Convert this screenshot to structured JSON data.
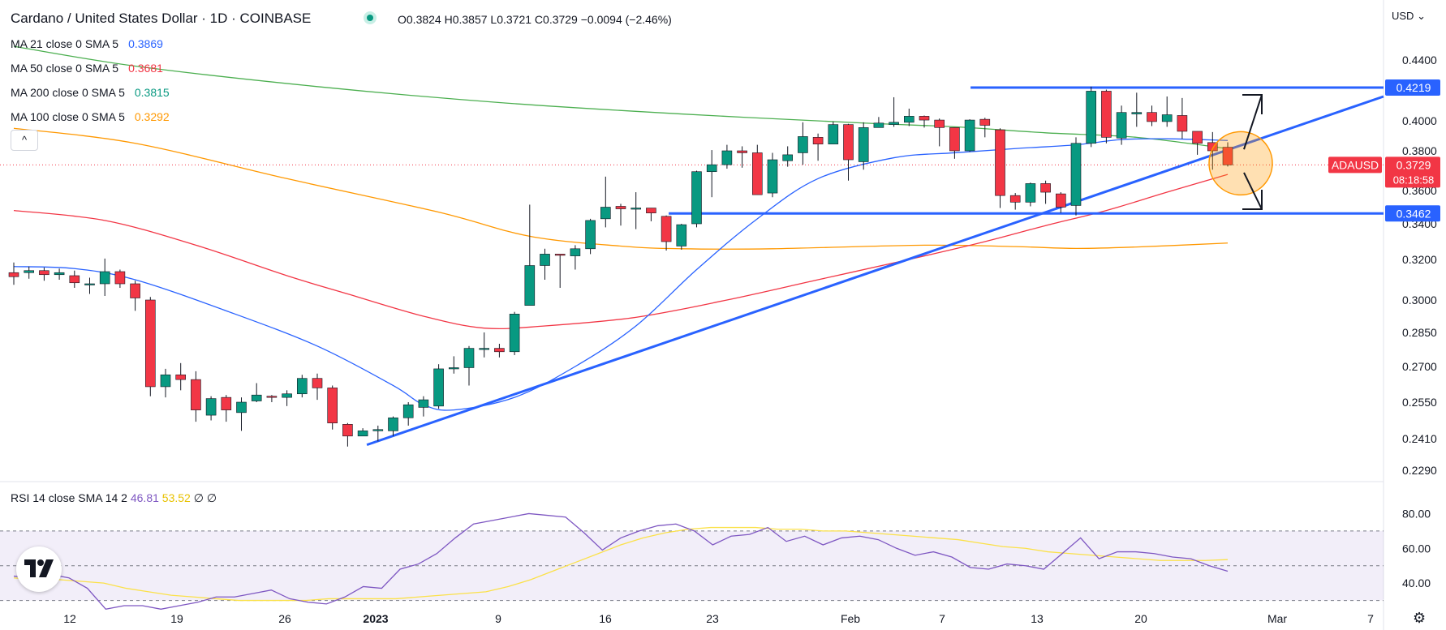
{
  "header": {
    "title": "Cardano / United States Dollar · 1D · COINBASE",
    "ohlc": "O0.3824 H0.3857 L0.3721 C0.3729 −0.0094 (−2.46%)",
    "currency": "USD"
  },
  "indicators": [
    {
      "label": "MA 21 close 0 SMA 5",
      "value": "0.3869",
      "color": "#2962ff"
    },
    {
      "label": "MA 50 close 0 SMA 5",
      "value": "0.3681",
      "color": "#f23645"
    },
    {
      "label": "MA 200 close 0 SMA 5",
      "value": "0.3815",
      "color": "#089981"
    },
    {
      "label": "MA 100 close 0 SMA 5",
      "value": "0.3292",
      "color": "#ff9800"
    }
  ],
  "collapse_glyph": "^",
  "rsi_legend": {
    "label": "RSI 14 close SMA 14 2",
    "rsi": "46.81",
    "sma": "53.52",
    "extra": "∅ ∅"
  },
  "price_badges": {
    "resistance": "0.4219",
    "support": "0.3462",
    "symbol": "ADAUSD",
    "last": "0.3729",
    "countdown": "08:18:58"
  },
  "colors": {
    "up": "#089981",
    "down": "#f23645",
    "ma21": "#2962ff",
    "ma50": "#f23645",
    "ma200": "#4caf50",
    "ma100": "#ff9800",
    "rsi": "#7e57c2",
    "rsi_sma": "#fbe149",
    "line": "#2962ff"
  },
  "chart_data": {
    "type": "candlestick",
    "price_axis_ticks": [
      "0.4400",
      "0.4000",
      "0.3800",
      "0.3600",
      "0.3400",
      "0.3200",
      "0.3000",
      "0.2850",
      "0.2700",
      "0.2550",
      "0.2410",
      "0.2290"
    ],
    "rsi_axis_ticks": [
      "80.00",
      "60.00",
      "40.00"
    ],
    "x_tick_labels": [
      "12",
      "19",
      "26",
      "2023",
      "9",
      "16",
      "23",
      "Feb",
      "7",
      "13",
      "20",
      "Mar",
      "7"
    ],
    "candles": [
      [
        0.3135,
        0.3115,
        0.3185,
        0.3075
      ],
      [
        0.3135,
        0.3145,
        0.3165,
        0.3105
      ],
      [
        0.3145,
        0.3125,
        0.316,
        0.3095
      ],
      [
        0.3125,
        0.3135,
        0.3155,
        0.31
      ],
      [
        0.312,
        0.3085,
        0.3145,
        0.306
      ],
      [
        0.308,
        0.308,
        0.311,
        0.303
      ],
      [
        0.308,
        0.314,
        0.3205,
        0.302
      ],
      [
        0.314,
        0.308,
        0.315,
        0.306
      ],
      [
        0.308,
        0.301,
        0.3095,
        0.295
      ],
      [
        0.3,
        0.2615,
        0.3015,
        0.2575
      ],
      [
        0.2615,
        0.2665,
        0.269,
        0.257
      ],
      [
        0.2665,
        0.2645,
        0.2715,
        0.26
      ],
      [
        0.2645,
        0.252,
        0.268,
        0.2475
      ],
      [
        0.25,
        0.2565,
        0.2575,
        0.248
      ],
      [
        0.257,
        0.252,
        0.258,
        0.2475
      ],
      [
        0.251,
        0.255,
        0.257,
        0.244
      ],
      [
        0.2555,
        0.258,
        0.263,
        0.255
      ],
      [
        0.2575,
        0.257,
        0.258,
        0.255
      ],
      [
        0.257,
        0.2585,
        0.26,
        0.2535
      ],
      [
        0.2585,
        0.265,
        0.2665,
        0.257
      ],
      [
        0.265,
        0.261,
        0.267,
        0.256
      ],
      [
        0.261,
        0.247,
        0.262,
        0.2445
      ],
      [
        0.2465,
        0.242,
        0.247,
        0.238
      ],
      [
        0.242,
        0.244,
        0.245,
        0.242
      ],
      [
        0.244,
        0.2445,
        0.246,
        0.24
      ],
      [
        0.244,
        0.249,
        0.2495,
        0.242
      ],
      [
        0.249,
        0.254,
        0.255,
        0.246
      ],
      [
        0.253,
        0.256,
        0.2575,
        0.2495
      ],
      [
        0.2535,
        0.269,
        0.271,
        0.2525
      ],
      [
        0.269,
        0.2695,
        0.2745,
        0.267
      ],
      [
        0.2695,
        0.278,
        0.279,
        0.262
      ],
      [
        0.278,
        0.278,
        0.285,
        0.274
      ],
      [
        0.278,
        0.2765,
        0.28,
        0.274
      ],
      [
        0.2765,
        0.2935,
        0.2945,
        0.275
      ],
      [
        0.2975,
        0.317,
        0.3515,
        0.2985
      ],
      [
        0.317,
        0.323,
        0.326,
        0.31
      ],
      [
        0.323,
        0.3225,
        0.3225,
        0.306
      ],
      [
        0.322,
        0.326,
        0.328,
        0.315
      ],
      [
        0.326,
        0.342,
        0.343,
        0.323
      ],
      [
        0.343,
        0.35,
        0.367,
        0.338
      ],
      [
        0.3505,
        0.349,
        0.352,
        0.339
      ],
      [
        0.349,
        0.3495,
        0.359,
        0.337
      ],
      [
        0.3495,
        0.3465,
        0.3495,
        0.3415
      ],
      [
        0.3445,
        0.33,
        0.345,
        0.325
      ],
      [
        0.3275,
        0.3395,
        0.34,
        0.3255
      ],
      [
        0.34,
        0.3695,
        0.37,
        0.338
      ],
      [
        0.3695,
        0.373,
        0.3805,
        0.356
      ],
      [
        0.373,
        0.38,
        0.384,
        0.371
      ],
      [
        0.38,
        0.379,
        0.383,
        0.3715
      ],
      [
        0.379,
        0.3575,
        0.384,
        0.3575
      ],
      [
        0.3585,
        0.3755,
        0.379,
        0.356
      ],
      [
        0.375,
        0.378,
        0.383,
        0.372
      ],
      [
        0.379,
        0.3895,
        0.399,
        0.373
      ],
      [
        0.389,
        0.3845,
        0.3915,
        0.375
      ],
      [
        0.3845,
        0.3975,
        0.3995,
        0.3845
      ],
      [
        0.3975,
        0.3755,
        0.398,
        0.365
      ],
      [
        0.3745,
        0.3955,
        0.399,
        0.3705
      ],
      [
        0.3955,
        0.3985,
        0.4025,
        0.3975
      ],
      [
        0.3975,
        0.399,
        0.4155,
        0.396
      ],
      [
        0.399,
        0.403,
        0.408,
        0.3965
      ],
      [
        0.403,
        0.4005,
        0.4035,
        0.3955
      ],
      [
        0.4005,
        0.3955,
        0.4015,
        0.383
      ],
      [
        0.3955,
        0.38,
        0.3955,
        0.376
      ],
      [
        0.38,
        0.4005,
        0.401,
        0.3795
      ],
      [
        0.401,
        0.397,
        0.402,
        0.389
      ],
      [
        0.394,
        0.357,
        0.395,
        0.3495
      ],
      [
        0.357,
        0.353,
        0.3585,
        0.3485
      ],
      [
        0.353,
        0.3635,
        0.364,
        0.3505
      ],
      [
        0.3635,
        0.359,
        0.365,
        0.352
      ],
      [
        0.358,
        0.35,
        0.359,
        0.3465
      ],
      [
        0.351,
        0.385,
        0.389,
        0.345
      ],
      [
        0.385,
        0.4195,
        0.4225,
        0.3825
      ],
      [
        0.4195,
        0.389,
        0.4205,
        0.385
      ],
      [
        0.3885,
        0.4055,
        0.41,
        0.384
      ],
      [
        0.4045,
        0.4055,
        0.4185,
        0.396
      ],
      [
        0.4055,
        0.3995,
        0.41,
        0.3965
      ],
      [
        0.3995,
        0.404,
        0.416,
        0.396
      ],
      [
        0.4035,
        0.393,
        0.415,
        0.388
      ],
      [
        0.393,
        0.385,
        0.393,
        0.378
      ],
      [
        0.3855,
        0.38,
        0.3925,
        0.3705
      ],
      [
        0.3824,
        0.3729,
        0.3857,
        0.3721
      ]
    ],
    "moving_averages": {
      "MA 21": [
        [
          0,
          0.3165
        ],
        [
          4,
          0.3155
        ],
        [
          8,
          0.31
        ],
        [
          14,
          0.295
        ],
        [
          20,
          0.279
        ],
        [
          25,
          0.262
        ],
        [
          27,
          0.254
        ],
        [
          29,
          0.252
        ],
        [
          33,
          0.257
        ],
        [
          37,
          0.27
        ],
        [
          41,
          0.288
        ],
        [
          45,
          0.315
        ],
        [
          49,
          0.343
        ],
        [
          53,
          0.366
        ],
        [
          58,
          0.3765
        ],
        [
          62,
          0.379
        ],
        [
          66,
          0.3815
        ],
        [
          70,
          0.384
        ],
        [
          73,
          0.3875
        ],
        [
          76,
          0.388
        ],
        [
          80,
          0.3869
        ]
      ],
      "MA 50": [
        [
          0,
          0.348
        ],
        [
          6,
          0.342
        ],
        [
          12,
          0.328
        ],
        [
          18,
          0.312
        ],
        [
          22,
          0.303
        ],
        [
          27,
          0.2925
        ],
        [
          31,
          0.287
        ],
        [
          35,
          0.288
        ],
        [
          41,
          0.292
        ],
        [
          47,
          0.3
        ],
        [
          53,
          0.31
        ],
        [
          59,
          0.32
        ],
        [
          64,
          0.33
        ],
        [
          68,
          0.339
        ],
        [
          72,
          0.348
        ],
        [
          76,
          0.359
        ],
        [
          80,
          0.3681
        ]
      ],
      "MA 100": [
        [
          0,
          0.395
        ],
        [
          8,
          0.385
        ],
        [
          18,
          0.366
        ],
        [
          28,
          0.347
        ],
        [
          34,
          0.333
        ],
        [
          40,
          0.3275
        ],
        [
          44,
          0.326
        ],
        [
          50,
          0.326
        ],
        [
          60,
          0.328
        ],
        [
          66,
          0.3272
        ],
        [
          70,
          0.3262
        ],
        [
          74,
          0.327
        ],
        [
          80,
          0.3292
        ]
      ],
      "MA 200": [
        [
          0,
          0.449
        ],
        [
          8,
          0.436
        ],
        [
          20,
          0.4225
        ],
        [
          32,
          0.412
        ],
        [
          44,
          0.4045
        ],
        [
          56,
          0.3985
        ],
        [
          62,
          0.396
        ],
        [
          68,
          0.392
        ],
        [
          74,
          0.389
        ],
        [
          80,
          0.3815
        ]
      ]
    },
    "rsi": [
      44,
      43,
      45,
      43,
      37,
      25,
      27,
      27,
      25,
      27,
      29,
      32,
      32,
      34,
      36,
      31,
      29,
      28,
      32,
      38,
      37,
      48,
      51,
      57,
      66,
      74,
      76,
      78,
      80,
      79,
      78,
      69,
      59,
      66,
      70,
      73,
      74,
      70,
      62,
      67,
      68,
      72,
      64,
      67,
      62,
      66,
      67,
      65,
      60,
      56,
      58,
      55,
      49,
      48,
      51,
      50,
      48,
      57,
      66,
      54,
      58,
      58,
      57,
      55,
      54,
      50,
      46.81
    ],
    "rsi_sma": [
      43,
      42,
      42,
      41,
      40,
      37,
      35,
      33,
      32,
      31,
      30,
      30,
      30,
      30,
      31,
      31,
      31,
      31,
      32,
      33,
      34,
      35,
      38,
      42,
      47,
      52,
      57,
      62,
      66,
      69,
      71,
      72,
      72,
      72,
      71,
      71,
      70,
      70,
      69,
      68,
      67,
      66,
      65,
      63,
      61,
      60,
      58,
      57,
      56,
      55,
      54,
      53,
      53,
      53,
      53.52
    ],
    "support": 0.3462,
    "resistance": 0.4219
  }
}
